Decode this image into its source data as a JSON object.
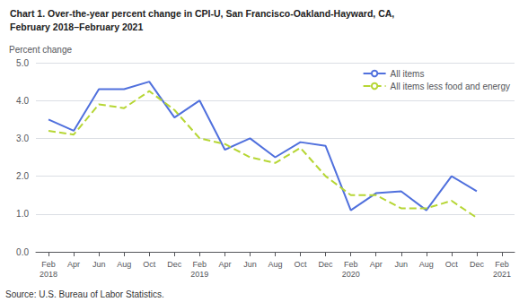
{
  "chart_data": {
    "type": "line",
    "title": "Chart 1. Over-the-year percent change in CPI-U, San Francisco-Oakland-Hayward, CA,",
    "subtitle": "February 2018–February 2021",
    "ylabel": "Percent change",
    "annotations": [
      "Source: U.S. Bureau of Labor Statistics."
    ],
    "categories": [
      "Feb\n2018",
      "Apr",
      "Jun",
      "Aug",
      "Oct",
      "Dec",
      "Feb\n2019",
      "Apr",
      "Jun",
      "Aug",
      "Oct",
      "Dec",
      "Feb\n2020",
      "Apr",
      "Jun",
      "Aug",
      "Oct",
      "Dec",
      "Feb\n2021"
    ],
    "series": [
      {
        "name": "All items",
        "line_style": "solid",
        "values": [
          3.5,
          3.2,
          4.3,
          4.3,
          4.5,
          3.55,
          4.0,
          2.7,
          3.0,
          2.5,
          2.9,
          2.8,
          1.1,
          1.55,
          1.6,
          1.1,
          2.0,
          1.6,
          null
        ]
      },
      {
        "name": "All items less food and energy",
        "line_style": "dashed",
        "values": [
          3.2,
          3.1,
          3.9,
          3.8,
          4.25,
          3.75,
          3.0,
          2.85,
          2.5,
          2.35,
          2.75,
          2.0,
          1.5,
          1.5,
          1.15,
          1.15,
          1.35,
          0.9,
          null
        ]
      }
    ],
    "ylim": [
      0.0,
      5.0
    ],
    "yticks": [
      {
        "value": 0,
        "label": "0.0"
      },
      {
        "value": 1,
        "label": "1.0"
      },
      {
        "value": 2,
        "label": "2.0"
      },
      {
        "value": 3,
        "label": "3.0"
      },
      {
        "value": 4,
        "label": "4.0"
      },
      {
        "value": 5,
        "label": "5.0"
      }
    ],
    "grid": true,
    "legend": "upper right"
  }
}
